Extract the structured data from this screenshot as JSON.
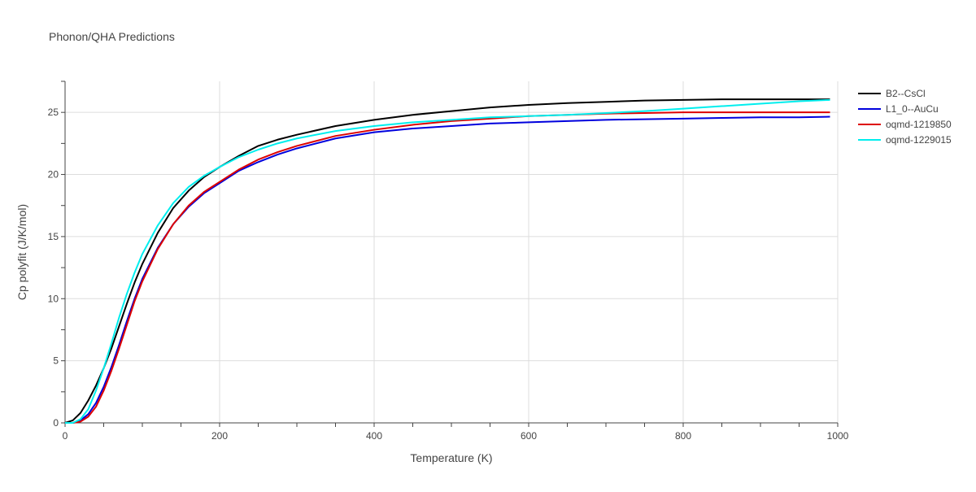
{
  "chart_data": {
    "type": "line",
    "title": "Phonon/QHA Predictions",
    "xlabel": "Temperature (K)",
    "ylabel": "Cp polyfit (J/K/mol)",
    "xlim": [
      0,
      1000
    ],
    "ylim": [
      0,
      27.5
    ],
    "xticks": [
      0,
      200,
      400,
      600,
      800,
      1000
    ],
    "yticks": [
      0,
      5,
      10,
      15,
      20,
      25
    ],
    "grid": true,
    "legend_position": "top-right",
    "series": [
      {
        "name": "B2--CsCl",
        "color": "#000000",
        "x": [
          0,
          10,
          20,
          30,
          40,
          50,
          60,
          70,
          80,
          90,
          100,
          120,
          140,
          160,
          180,
          200,
          225,
          250,
          275,
          300,
          350,
          400,
          450,
          500,
          550,
          600,
          650,
          700,
          750,
          800,
          850,
          900,
          950,
          990
        ],
        "y": [
          0,
          0.2,
          0.8,
          1.8,
          3.0,
          4.4,
          6.0,
          7.8,
          9.6,
          11.3,
          12.8,
          15.3,
          17.3,
          18.7,
          19.8,
          20.6,
          21.5,
          22.3,
          22.8,
          23.2,
          23.9,
          24.4,
          24.8,
          25.1,
          25.4,
          25.6,
          25.75,
          25.85,
          25.95,
          26.0,
          26.05,
          26.05,
          26.05,
          26.05
        ]
      },
      {
        "name": "L1_0--AuCu",
        "color": "#0000dd",
        "x": [
          0,
          10,
          20,
          30,
          40,
          50,
          60,
          70,
          80,
          90,
          100,
          120,
          140,
          160,
          180,
          200,
          225,
          250,
          275,
          300,
          350,
          400,
          450,
          500,
          550,
          600,
          650,
          700,
          750,
          800,
          850,
          900,
          950,
          990
        ],
        "y": [
          0,
          0,
          0.2,
          0.7,
          1.6,
          2.9,
          4.5,
          6.3,
          8.2,
          10.0,
          11.6,
          14.1,
          16.0,
          17.4,
          18.5,
          19.3,
          20.3,
          21.0,
          21.6,
          22.1,
          22.9,
          23.4,
          23.7,
          23.9,
          24.1,
          24.2,
          24.3,
          24.4,
          24.45,
          24.5,
          24.55,
          24.6,
          24.6,
          24.65
        ]
      },
      {
        "name": "oqmd-1219850",
        "color": "#dd0000",
        "x": [
          0,
          10,
          20,
          30,
          40,
          50,
          60,
          70,
          80,
          90,
          100,
          120,
          140,
          160,
          180,
          200,
          225,
          250,
          275,
          300,
          350,
          400,
          450,
          500,
          550,
          600,
          650,
          700,
          750,
          800,
          850,
          900,
          950,
          990
        ],
        "y": [
          0,
          0,
          0.1,
          0.5,
          1.3,
          2.6,
          4.2,
          6.0,
          7.9,
          9.8,
          11.4,
          14.0,
          16.0,
          17.5,
          18.6,
          19.4,
          20.4,
          21.2,
          21.8,
          22.3,
          23.1,
          23.6,
          24.0,
          24.3,
          24.5,
          24.7,
          24.8,
          24.9,
          24.95,
          25.0,
          25.0,
          25.0,
          25.0,
          25.0
        ]
      },
      {
        "name": "oqmd-1229015",
        "color": "#00eeee",
        "x": [
          0,
          10,
          20,
          30,
          40,
          50,
          60,
          70,
          80,
          90,
          100,
          120,
          140,
          160,
          180,
          200,
          225,
          250,
          275,
          300,
          350,
          400,
          450,
          500,
          550,
          600,
          650,
          700,
          750,
          800,
          850,
          900,
          950,
          990
        ],
        "y": [
          0,
          0,
          0.3,
          1.1,
          2.6,
          4.4,
          6.4,
          8.5,
          10.4,
          12.1,
          13.6,
          15.9,
          17.7,
          19.0,
          19.9,
          20.6,
          21.4,
          22.0,
          22.5,
          22.9,
          23.5,
          23.9,
          24.2,
          24.4,
          24.6,
          24.7,
          24.8,
          24.95,
          25.1,
          25.3,
          25.5,
          25.7,
          25.9,
          26.0
        ]
      }
    ]
  }
}
